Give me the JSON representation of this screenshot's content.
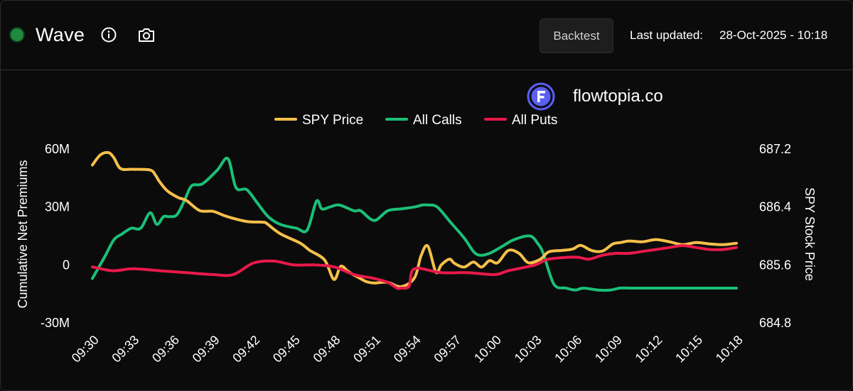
{
  "header": {
    "title": "Wave",
    "backtest_label": "Backtest",
    "last_updated_label": "Last updated:",
    "last_updated_value": "28-Oct-2025 - 10:18"
  },
  "brand": {
    "name": "flowtopia.co"
  },
  "colors": {
    "background": "#0b0b0b",
    "status": "#1f8a3d",
    "spy": "#f5c04a",
    "calls": "#1bbf77",
    "puts": "#e8194a",
    "logo": "#5a5ff0"
  },
  "icons": [
    "status-dot",
    "info-icon",
    "camera-icon",
    "flowtopia-logo-icon"
  ],
  "chart_data": {
    "type": "line",
    "legend_position": "top-center",
    "grid": false,
    "x_ticks": [
      "09:30",
      "09:33",
      "09:36",
      "09:39",
      "09:42",
      "09:45",
      "09:48",
      "09:51",
      "09:54",
      "09:57",
      "10:00",
      "10:03",
      "10:06",
      "10:09",
      "10:12",
      "10:15",
      "10:18"
    ],
    "left_axis": {
      "label": "Cumulative Net Premiums",
      "range": [
        -30,
        60
      ],
      "ticks": [
        "60M",
        "30M",
        "0",
        "-30M"
      ]
    },
    "right_axis": {
      "label": "SPY Stock Price",
      "range": [
        684.8,
        687.2
      ],
      "ticks": [
        "687.2",
        "686.4",
        "685.6",
        "684.8"
      ]
    },
    "x_range": [
      0,
      48
    ],
    "series": [
      {
        "name": "SPY Price",
        "axis": "right",
        "color": "#f5c04a",
        "x": [
          0,
          0.6,
          1.2,
          1.6,
          2.1,
          3,
          4.3,
          4.7,
          5,
          5.6,
          6.4,
          7,
          8,
          9,
          10,
          11.5,
          12.7,
          13,
          14,
          15.5,
          16.2,
          17.3,
          18,
          18.5,
          19,
          19.4,
          19.9,
          20.4,
          21,
          22,
          23,
          24,
          24.5,
          25,
          25.6,
          26,
          26.6,
          27,
          27.7,
          28.4,
          29,
          29.6,
          30.2,
          31,
          31.8,
          32.5,
          33.4,
          34,
          35,
          35.8,
          36.4,
          37.2,
          38,
          38.8,
          39.4,
          40,
          41,
          42,
          43,
          44,
          45,
          46,
          47,
          48
        ],
        "y": [
          686.98,
          687.12,
          687.15,
          687.08,
          686.93,
          686.92,
          686.91,
          686.84,
          686.75,
          686.62,
          686.53,
          686.49,
          686.35,
          686.34,
          686.27,
          686.2,
          686.19,
          686.17,
          686.03,
          685.9,
          685.8,
          685.67,
          685.4,
          685.58,
          685.52,
          685.47,
          685.42,
          685.37,
          685.35,
          685.36,
          685.3,
          685.42,
          685.73,
          685.86,
          685.5,
          685.6,
          685.68,
          685.62,
          685.57,
          685.64,
          685.57,
          685.66,
          685.63,
          685.8,
          685.76,
          685.63,
          685.68,
          685.78,
          685.8,
          685.82,
          685.87,
          685.8,
          685.79,
          685.89,
          685.91,
          685.93,
          685.92,
          685.95,
          685.92,
          685.88,
          685.91,
          685.89,
          685.88,
          685.9
        ]
      },
      {
        "name": "All Calls",
        "axis": "left",
        "color": "#1bbf77",
        "x": [
          0,
          0.9,
          1.6,
          2.2,
          2.9,
          3.6,
          4.3,
          4.8,
          5.3,
          5.7,
          6.3,
          6.9,
          7.4,
          8.2,
          9.3,
          10.1,
          10.7,
          11.5,
          12.3,
          13.1,
          14,
          15.2,
          16,
          16.7,
          17.1,
          17.7,
          18.4,
          19.5,
          20,
          21,
          22,
          23,
          24,
          24.6,
          25,
          25.7,
          26.7,
          27.7,
          28.4,
          28.9,
          29.6,
          30.4,
          31.4,
          32.6,
          33.2,
          33.6,
          34.4,
          35.3,
          36,
          36.6,
          37.7,
          38.6,
          39.3,
          40,
          41,
          42,
          43,
          43.7,
          44.5,
          45,
          45.5,
          46.4,
          47,
          48
        ],
        "y": [
          -7,
          4,
          13,
          16,
          19,
          19,
          27,
          21,
          25,
          25,
          26,
          34,
          41,
          42,
          49,
          55,
          40,
          39,
          32,
          25,
          21,
          19,
          18,
          33,
          29,
          30,
          31,
          28,
          28,
          23,
          28,
          29,
          30,
          31,
          31,
          30,
          22,
          14,
          7,
          5,
          6,
          9,
          13,
          15,
          11,
          6,
          -10,
          -12,
          -13,
          -12,
          -13,
          -13,
          -12,
          -12,
          -12,
          -12,
          -12,
          -12,
          -12,
          -12,
          -12,
          -12,
          -12,
          -12
        ]
      },
      {
        "name": "All Puts",
        "axis": "left",
        "color": "#e8194a",
        "x": [
          0,
          1.5,
          3,
          5,
          7,
          9,
          10.5,
          12,
          13.5,
          15,
          16.5,
          18,
          19.5,
          21,
          22,
          22.7,
          23,
          23.6,
          24,
          26,
          28,
          30,
          31,
          33,
          34,
          36,
          37,
          38,
          39,
          40,
          41,
          42,
          43,
          44,
          45,
          46,
          47,
          48
        ],
        "y": [
          -1,
          -3,
          -2,
          -3,
          -4,
          -5,
          -5,
          1,
          2,
          0,
          0,
          -1,
          -5,
          -7,
          -9,
          -12,
          -12,
          -11,
          -2,
          -4,
          -4,
          -5,
          -3,
          0,
          3,
          4,
          3,
          5,
          6,
          6,
          7,
          8,
          9,
          10,
          9,
          8,
          8,
          9
        ]
      }
    ]
  }
}
